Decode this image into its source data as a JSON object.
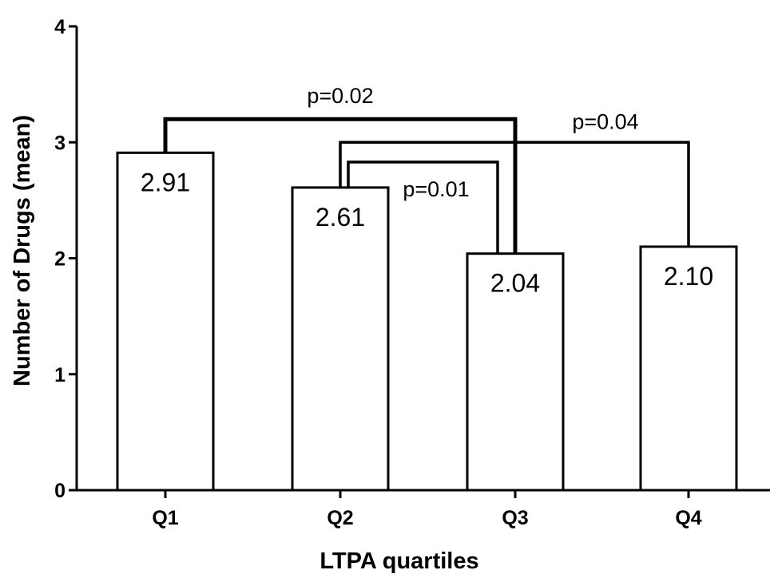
{
  "chart_data": {
    "type": "bar",
    "categories": [
      "Q1",
      "Q2",
      "Q3",
      "Q4"
    ],
    "values": [
      2.91,
      2.61,
      2.04,
      2.1
    ],
    "value_labels": [
      "2.91",
      "2.61",
      "2.04",
      "2.10"
    ],
    "title": "",
    "xlabel": "LTPA quartiles",
    "ylabel": "Number of Drugs (mean)",
    "ylim": [
      0,
      4
    ],
    "yticks": [
      "0",
      "1",
      "2",
      "3",
      "4"
    ],
    "grid": false,
    "bar_fill": "#ffffff",
    "bar_stroke": "#000000",
    "comparisons": [
      {
        "from": "Q1",
        "to": "Q3",
        "label": "p=0.02",
        "level": 3.2,
        "bold": true
      },
      {
        "from": "Q2",
        "to": "Q4",
        "label": "p=0.04",
        "level": 3.0,
        "bold": false
      },
      {
        "from": "Q2",
        "to": "Q3",
        "label": "p=0.01",
        "level": 2.83,
        "bold": false
      }
    ]
  }
}
